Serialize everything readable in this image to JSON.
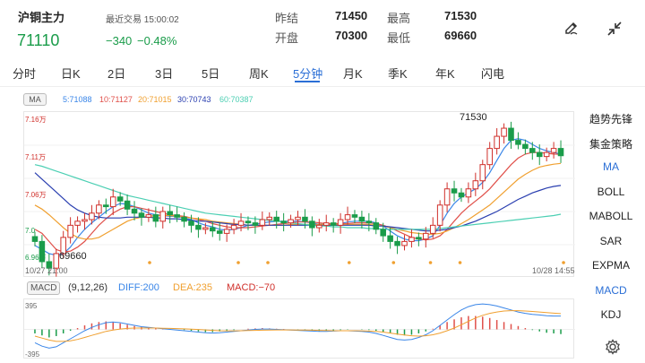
{
  "header": {
    "title": "沪铜主力",
    "last_trade": "最近交易 15:00:02",
    "price": "71110",
    "change": "−340",
    "change_pct": "−0.48%",
    "stats": [
      {
        "label": "昨结",
        "value": "71450"
      },
      {
        "label": "最高",
        "value": "71530"
      },
      {
        "label": "开盘",
        "value": "70300"
      },
      {
        "label": "最低",
        "value": "69660"
      }
    ],
    "edit_icon": "pencil-icon",
    "collapse_icon": "collapse-arrows-icon"
  },
  "tabs": [
    "分时",
    "日K",
    "2日",
    "3日",
    "5日",
    "周K",
    "5分钟",
    "月K",
    "季K",
    "年K",
    "闪电"
  ],
  "active_tab": "5分钟",
  "ma_legend": {
    "chip": "MA",
    "items": [
      {
        "label": "5:71088",
        "color": "#3a86e8"
      },
      {
        "label": "10:71127",
        "color": "#e0504a"
      },
      {
        "label": "20:71015",
        "color": "#f0a030"
      },
      {
        "label": "30:70743",
        "color": "#2a3fb0"
      },
      {
        "label": "60:70387",
        "color": "#4ccfb3"
      }
    ]
  },
  "chart_data": {
    "type": "candlestick",
    "y_ticks": [
      "7.16万",
      "7.11万",
      "7.06万",
      "7.0",
      "6.96万"
    ],
    "x_labels": [
      "10/27 21:00",
      "10/28 14:55"
    ],
    "high_label": "71530",
    "low_label": "69660",
    "closes": [
      70050,
      69800,
      69720,
      69900,
      70100,
      70250,
      70300,
      70320,
      70400,
      70500,
      70480,
      70600,
      70550,
      70450,
      70400,
      70350,
      70380,
      70300,
      70420,
      70380,
      70350,
      70300,
      70250,
      70200,
      70220,
      70180,
      70150,
      70200,
      70250,
      70300,
      70280,
      70250,
      70320,
      70350,
      70300,
      70280,
      70320,
      70350,
      70300,
      70220,
      70250,
      70280,
      70250,
      70320,
      70380,
      70350,
      70300,
      70280,
      70200,
      70120,
      70050,
      70000,
      70050,
      70100,
      70080,
      70150,
      70250,
      70500,
      70700,
      70650,
      70600,
      70700,
      70800,
      71000,
      71200,
      71350,
      71450,
      71300,
      71250,
      71200,
      71150,
      71100,
      71150,
      71200,
      71110
    ],
    "ma": {
      "5": [
        70000,
        69950,
        69900,
        69880,
        69900,
        69980,
        70100,
        70200,
        70280,
        70350,
        70420,
        70480,
        70520,
        70510,
        70480,
        70440,
        70400,
        70380,
        70370,
        70360,
        70360,
        70340,
        70320,
        70280,
        70250,
        70230,
        70200,
        70190,
        70200,
        70220,
        70250,
        70260,
        70280,
        70290,
        70300,
        70300,
        70300,
        70300,
        70290,
        70280,
        70260,
        70260,
        70260,
        70270,
        70290,
        70300,
        70300,
        70300,
        70280,
        70240,
        70180,
        70120,
        70080,
        70060,
        70060,
        70080,
        70120,
        70250,
        70400,
        70520,
        70600,
        70650,
        70700,
        70780,
        70900,
        71050,
        71200,
        71300,
        71320,
        71300,
        71250,
        71200,
        71170,
        71150,
        71130
      ],
      "10": [
        70200,
        70150,
        70050,
        69950,
        69920,
        69930,
        69980,
        70050,
        70150,
        70250,
        70330,
        70400,
        70450,
        70480,
        70480,
        70460,
        70440,
        70420,
        70400,
        70380,
        70370,
        70360,
        70340,
        70320,
        70300,
        70270,
        70250,
        70230,
        70220,
        70220,
        70220,
        70230,
        70240,
        70250,
        70260,
        70270,
        70280,
        70290,
        70290,
        70290,
        70280,
        70270,
        70270,
        70270,
        70270,
        70280,
        70280,
        70280,
        70270,
        70250,
        70220,
        70180,
        70140,
        70100,
        70080,
        70070,
        70080,
        70120,
        70200,
        70300,
        70400,
        70480,
        70550,
        70620,
        70700,
        70800,
        70900,
        71000,
        71080,
        71130,
        71150,
        71150,
        71140,
        71130,
        71127
      ],
      "20": [
        70500,
        70450,
        70380,
        70300,
        70220,
        70150,
        70100,
        70080,
        70080,
        70100,
        70150,
        70200,
        70250,
        70300,
        70330,
        70350,
        70360,
        70370,
        70370,
        70370,
        70360,
        70350,
        70340,
        70330,
        70320,
        70300,
        70290,
        70280,
        70270,
        70260,
        70250,
        70250,
        70250,
        70250,
        70250,
        70250,
        70260,
        70260,
        70260,
        70260,
        70260,
        70260,
        70260,
        70260,
        70260,
        70260,
        70260,
        70260,
        70250,
        70240,
        70220,
        70200,
        70180,
        70160,
        70150,
        70140,
        70140,
        70150,
        70180,
        70220,
        70270,
        70320,
        70380,
        70440,
        70500,
        70580,
        70660,
        70740,
        70820,
        70880,
        70930,
        70970,
        70990,
        71005,
        71015
      ],
      "30": [
        70900,
        70820,
        70740,
        70660,
        70580,
        70500,
        70440,
        70400,
        70370,
        70350,
        70340,
        70340,
        70340,
        70350,
        70350,
        70350,
        70350,
        70340,
        70340,
        70330,
        70330,
        70320,
        70310,
        70300,
        70300,
        70290,
        70280,
        70270,
        70260,
        70260,
        70250,
        70250,
        70250,
        70250,
        70250,
        70250,
        70250,
        70250,
        70250,
        70250,
        70250,
        70250,
        70250,
        70250,
        70250,
        70250,
        70250,
        70250,
        70240,
        70240,
        70230,
        70220,
        70210,
        70200,
        70190,
        70180,
        70180,
        70190,
        70200,
        70220,
        70240,
        70270,
        70300,
        70340,
        70380,
        70420,
        70470,
        70520,
        70570,
        70610,
        70650,
        70680,
        70710,
        70730,
        70743
      ],
      "60": [
        71000,
        70980,
        70950,
        70920,
        70890,
        70860,
        70830,
        70800,
        70770,
        70740,
        70710,
        70680,
        70650,
        70620,
        70600,
        70580,
        70560,
        70540,
        70520,
        70500,
        70480,
        70460,
        70440,
        70420,
        70400,
        70390,
        70380,
        70370,
        70360,
        70350,
        70340,
        70330,
        70320,
        70310,
        70300,
        70290,
        70280,
        70270,
        70260,
        70250,
        70240,
        70240,
        70230,
        70230,
        70220,
        70220,
        70220,
        70210,
        70210,
        70200,
        70200,
        70200,
        70200,
        70200,
        70200,
        70200,
        70200,
        70210,
        70220,
        70230,
        70240,
        70250,
        70260,
        70270,
        70280,
        70290,
        70300,
        70310,
        70320,
        70330,
        70340,
        70350,
        70360,
        70370,
        70387
      ]
    },
    "ylim": [
      69600,
      71650
    ]
  },
  "macd": {
    "chip": "MACD",
    "params": "(9,12,26)",
    "diff": "DIFF:200",
    "dea": "DEA:235",
    "macd": "MACD:−70",
    "top_tick": "395",
    "bottom_tick": "-395",
    "hist": [
      -60,
      -90,
      -120,
      -100,
      -60,
      -20,
      20,
      60,
      90,
      110,
      120,
      110,
      90,
      70,
      50,
      40,
      30,
      20,
      10,
      5,
      0,
      -10,
      -20,
      -30,
      -40,
      -40,
      -30,
      -20,
      -10,
      0,
      10,
      15,
      20,
      15,
      10,
      5,
      0,
      -5,
      -10,
      -20,
      -25,
      -20,
      -15,
      -10,
      -5,
      0,
      -5,
      -10,
      -20,
      -40,
      -60,
      -80,
      -90,
      -80,
      -60,
      -30,
      10,
      60,
      110,
      150,
      180,
      200,
      200,
      190,
      170,
      140,
      110,
      80,
      50,
      20,
      -10,
      -30,
      -50,
      -60,
      -70
    ],
    "diff_line": [
      -200,
      -250,
      -280,
      -260,
      -200,
      -140,
      -80,
      -20,
      30,
      70,
      100,
      110,
      100,
      80,
      60,
      40,
      30,
      20,
      10,
      0,
      -10,
      -20,
      -30,
      -40,
      -50,
      -55,
      -50,
      -40,
      -30,
      -20,
      -10,
      0,
      5,
      5,
      0,
      -5,
      -10,
      -15,
      -20,
      -25,
      -30,
      -30,
      -25,
      -20,
      -20,
      -25,
      -30,
      -40,
      -60,
      -90,
      -120,
      -150,
      -160,
      -150,
      -120,
      -80,
      -20,
      60,
      140,
      220,
      290,
      340,
      370,
      380,
      370,
      350,
      320,
      290,
      260,
      240,
      225,
      215,
      205,
      200,
      200
    ],
    "dea_line": [
      -100,
      -130,
      -160,
      -180,
      -180,
      -170,
      -150,
      -120,
      -90,
      -60,
      -30,
      -10,
      5,
      15,
      20,
      20,
      20,
      20,
      18,
      15,
      12,
      8,
      3,
      -2,
      -8,
      -15,
      -20,
      -22,
      -22,
      -20,
      -18,
      -15,
      -12,
      -10,
      -8,
      -8,
      -8,
      -9,
      -10,
      -12,
      -15,
      -18,
      -20,
      -20,
      -20,
      -20,
      -22,
      -25,
      -30,
      -40,
      -55,
      -70,
      -85,
      -95,
      -100,
      -95,
      -80,
      -55,
      -20,
      20,
      70,
      120,
      170,
      210,
      240,
      260,
      275,
      280,
      280,
      275,
      268,
      260,
      250,
      242,
      235
    ],
    "ylim": [
      -395,
      395
    ]
  },
  "sidebar": [
    "趋势先锋",
    "集金策略",
    "MA",
    "BOLL",
    "MABOLL",
    "SAR",
    "EXPMA",
    "MACD",
    "KDJ"
  ],
  "sidebar_active": [
    "MA",
    "MACD"
  ],
  "settings_icon": "gear-icon"
}
